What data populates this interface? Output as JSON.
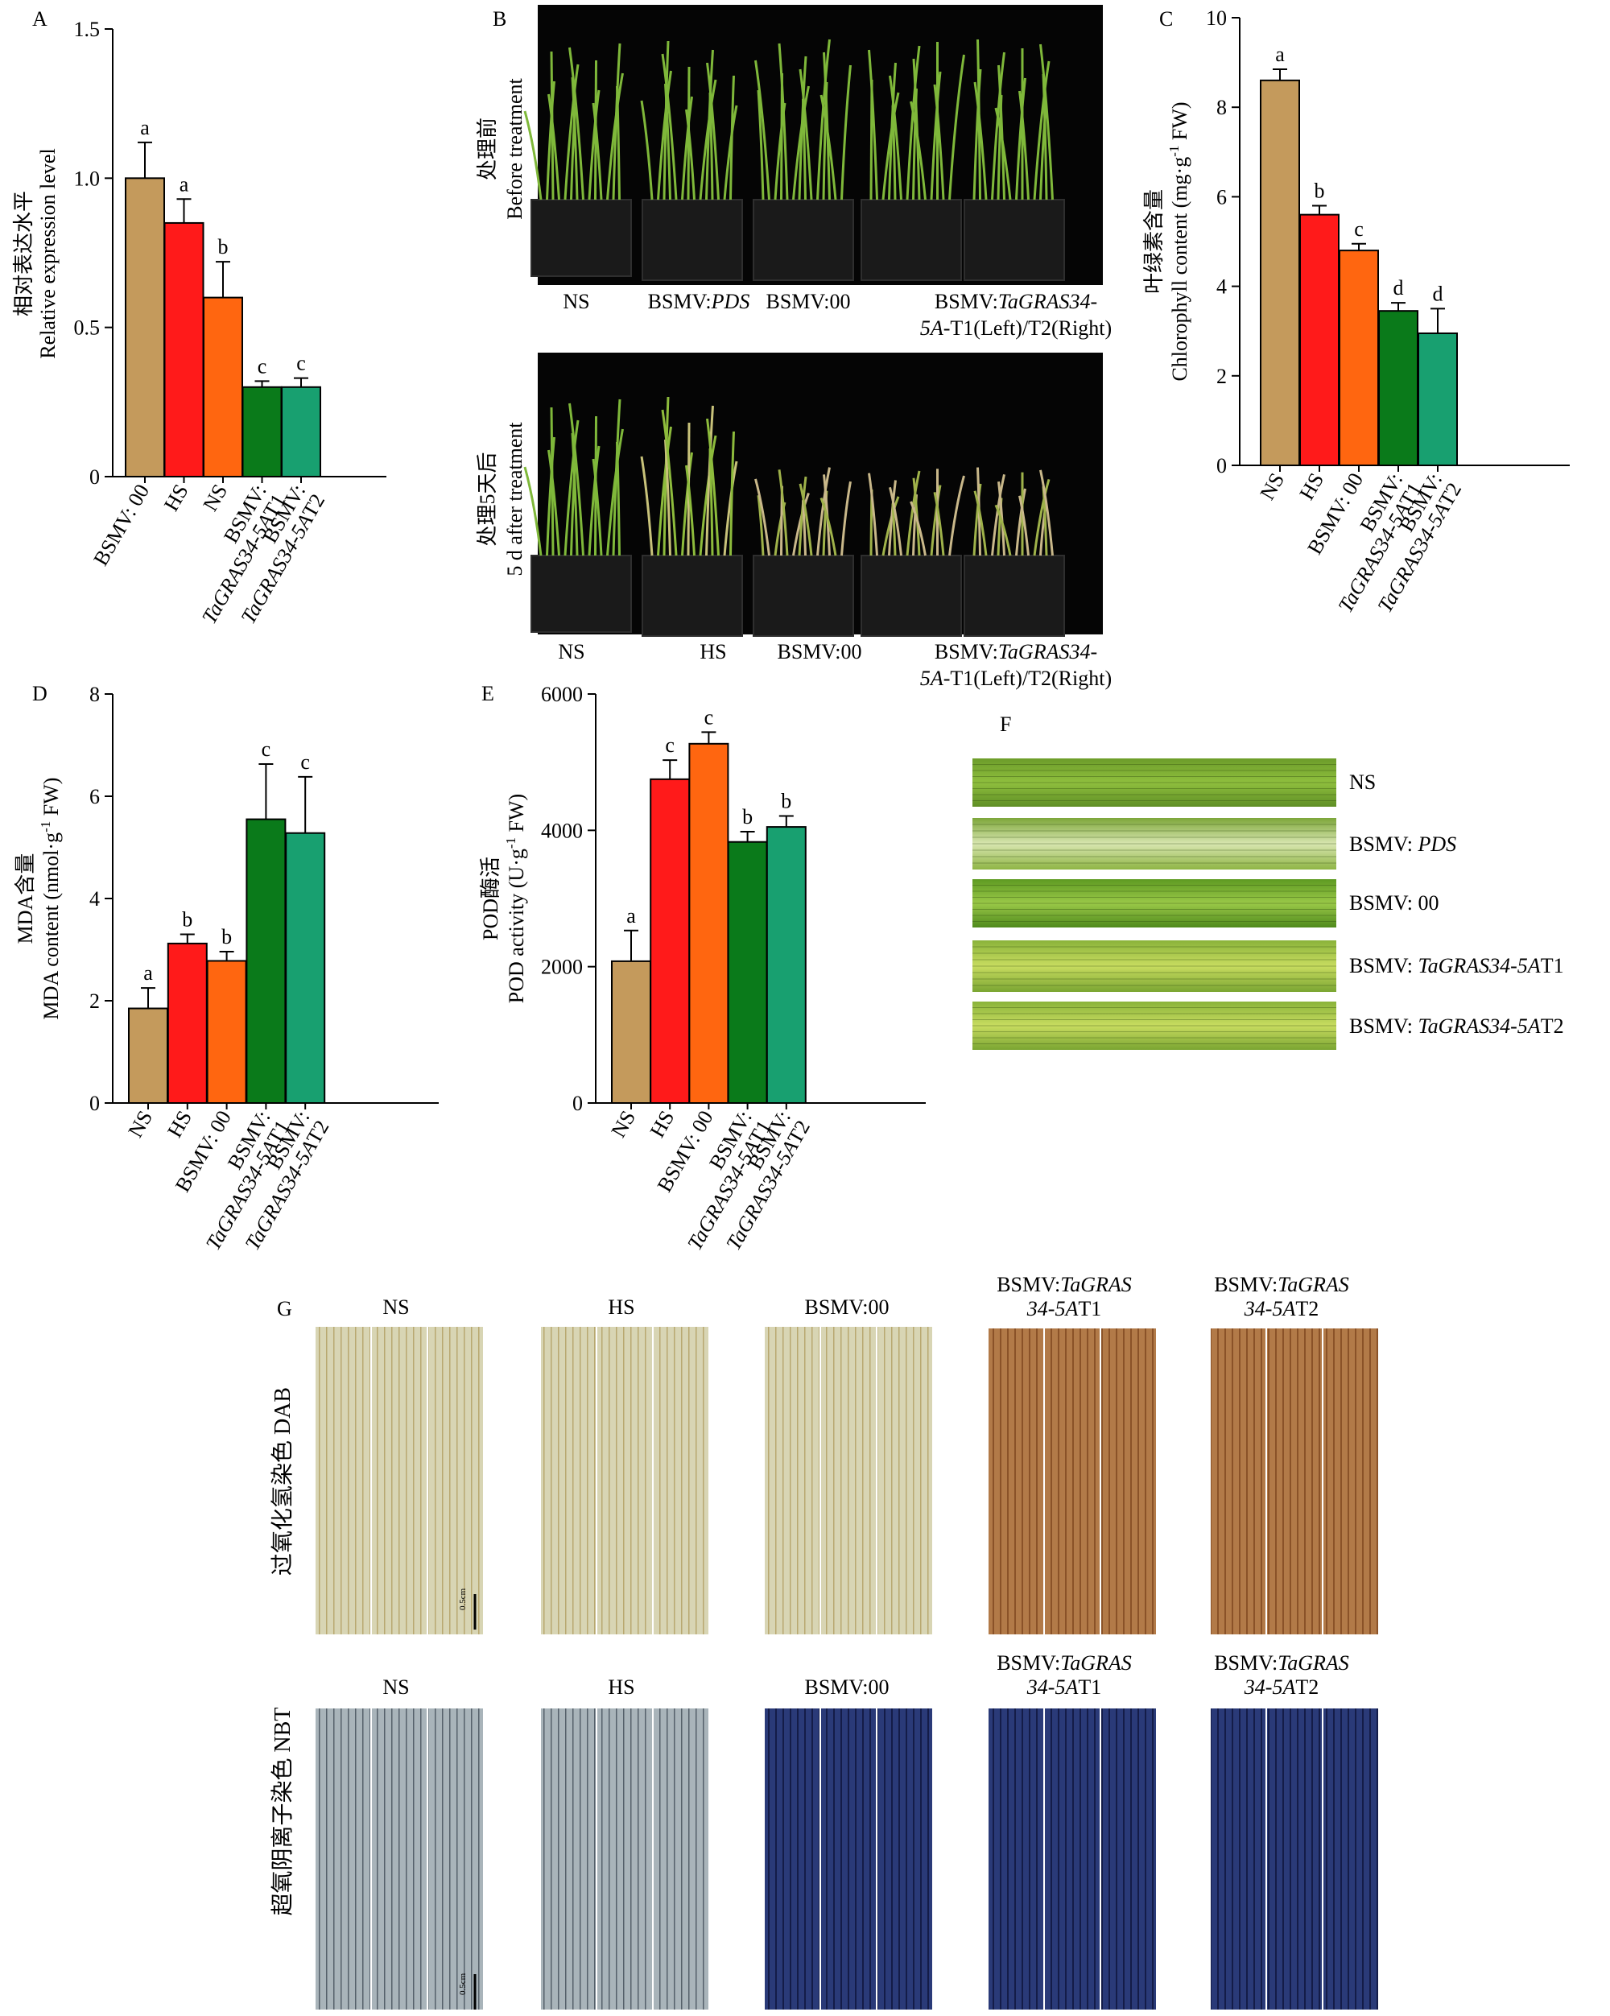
{
  "colors": {
    "bsmv00_A": "#c49a5c",
    "ns": "#c49a5c",
    "hs": "#ff1a1a",
    "orange": "#ff6610",
    "t1": "#0a7a1a",
    "t2": "#18a070"
  },
  "chart_data": [
    {
      "panel": "A",
      "type": "bar",
      "ylabel_cn": "相对表达水平",
      "ylabel_en": "Relative expression level",
      "ylim": [
        0,
        1.5
      ],
      "yticks": [
        "0",
        "0.5",
        "1.0",
        "1.5"
      ],
      "categories": [
        {
          "l1": "BSMV: 00",
          "l2": ""
        },
        {
          "l1": "HS",
          "l2": ""
        },
        {
          "l1": "NS",
          "l2": ""
        },
        {
          "l1": "BSMV:",
          "l2": "TaGRAS34-5AT1"
        },
        {
          "l1": "BSMV:",
          "l2": "TaGRAS34-5AT2"
        }
      ],
      "values": [
        1.0,
        0.85,
        0.6,
        0.3,
        0.3
      ],
      "errors": [
        0.12,
        0.08,
        0.12,
        0.02,
        0.03
      ],
      "letters": [
        "a",
        "a",
        "b",
        "c",
        "c"
      ]
    },
    {
      "panel": "C",
      "type": "bar",
      "ylabel_cn": "叶绿素含量",
      "ylabel_en": "Chlorophyll content (mg·g-1 FW)",
      "ylim": [
        0,
        10
      ],
      "yticks": [
        "0",
        "2",
        "4",
        "6",
        "8",
        "10"
      ],
      "categories": [
        {
          "l1": "NS",
          "l2": ""
        },
        {
          "l1": "HS",
          "l2": ""
        },
        {
          "l1": "BSMV: 00",
          "l2": ""
        },
        {
          "l1": "BSMV:",
          "l2": "TaGRAS34-5AT1"
        },
        {
          "l1": "BSMV:",
          "l2": "TaGRAS34-5AT2"
        }
      ],
      "values": [
        8.6,
        5.6,
        4.8,
        3.45,
        2.95
      ],
      "errors": [
        0.25,
        0.2,
        0.15,
        0.18,
        0.55
      ],
      "letters": [
        "a",
        "b",
        "c",
        "d",
        "d"
      ]
    },
    {
      "panel": "D",
      "type": "bar",
      "ylabel_cn": "MDA含量",
      "ylabel_en": "MDA content (nmol·g-1 FW)",
      "ylim": [
        0,
        8
      ],
      "yticks": [
        "0",
        "2",
        "4",
        "6",
        "8"
      ],
      "categories": [
        {
          "l1": "NS",
          "l2": ""
        },
        {
          "l1": "HS",
          "l2": ""
        },
        {
          "l1": "BSMV: 00",
          "l2": ""
        },
        {
          "l1": "BSMV:",
          "l2": "TaGRAS34-5AT1"
        },
        {
          "l1": "BSMV:",
          "l2": "TaGRAS34-5AT2"
        }
      ],
      "values": [
        1.85,
        3.12,
        2.78,
        5.55,
        5.28
      ],
      "errors": [
        0.4,
        0.18,
        0.18,
        1.08,
        1.1
      ],
      "letters": [
        "a",
        "b",
        "b",
        "c",
        "c"
      ]
    },
    {
      "panel": "E",
      "type": "bar",
      "ylabel_cn": "POD酶活",
      "ylabel_en": "POD activity (U·g-1 FW)",
      "ylim": [
        0,
        6000
      ],
      "yticks": [
        "0",
        "2000",
        "4000",
        "6000"
      ],
      "categories": [
        {
          "l1": "NS",
          "l2": ""
        },
        {
          "l1": "HS",
          "l2": ""
        },
        {
          "l1": "BSMV: 00",
          "l2": ""
        },
        {
          "l1": "BSMV:",
          "l2": "TaGRAS34-5AT1"
        },
        {
          "l1": "BSMV:",
          "l2": "TaGRAS34-5AT2"
        }
      ],
      "values": [
        2080,
        4750,
        5270,
        3830,
        4050
      ],
      "errors": [
        450,
        280,
        170,
        150,
        160
      ],
      "letters": [
        "a",
        "c",
        "c",
        "b",
        "b"
      ]
    }
  ],
  "panel_letters": {
    "a": "A",
    "b": "B",
    "c": "C",
    "d": "D",
    "e": "E",
    "f": "F",
    "g": "G"
  },
  "panelB": {
    "before_cn": "处理前",
    "before_en": "Before treatment",
    "after_cn": "处理5天后",
    "after_en": "5 d after treatment",
    "top_labels": [
      "NS",
      "BSMV:PDS",
      "BSMV:00",
      "BSMV:TaGRAS34-",
      "5A-T1(Left)/T2(Right)"
    ],
    "bottom_labels": [
      "NS",
      "HS",
      "BSMV:00",
      "BSMV:TaGRAS34-",
      "5A-T1(Left)/T2(Right)"
    ]
  },
  "panelF": {
    "labels": [
      "NS",
      "BSMV: PDS",
      "BSMV: 00",
      "BSMV: TaGRAS34-5AT1",
      "BSMV: TaGRAS34-5AT2"
    ]
  },
  "panelG": {
    "dab_label": "过氧化氢染色 DAB",
    "nbt_label": "超氧阴离子染色 NBT",
    "groups": [
      "NS",
      "HS",
      "BSMV:00",
      "BSMV:TaGRAS",
      "BSMV:TaGRAS"
    ],
    "groups_line2": [
      "",
      "",
      "",
      "34-5AT1",
      "34-5AT2"
    ],
    "scale": "0.5cm"
  }
}
